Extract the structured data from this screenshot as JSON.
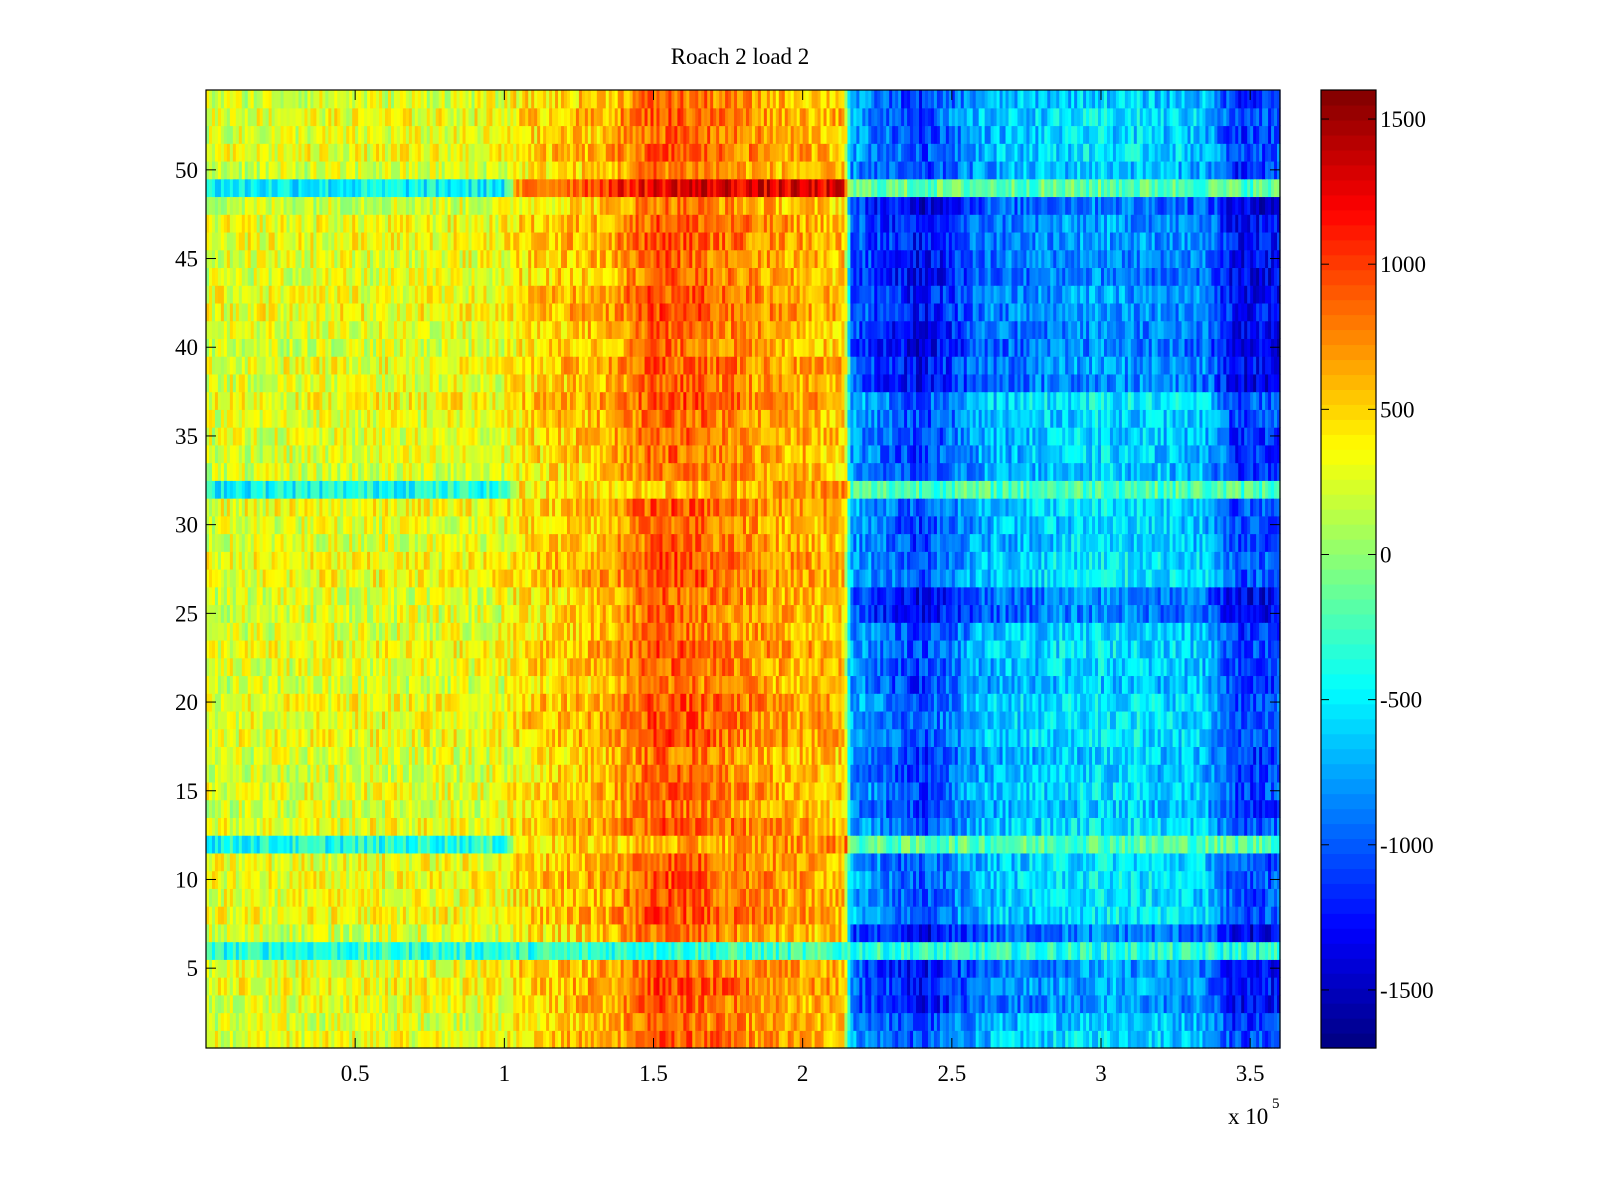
{
  "chart_data": {
    "type": "heatmap",
    "title": "Roach 2 load 2",
    "xlabel": "",
    "ylabel": "",
    "x_range": [
      0,
      360000
    ],
    "y_range": [
      0.5,
      54.5
    ],
    "rows": 54,
    "columns": 360,
    "x_ticks": [
      50000,
      100000,
      150000,
      200000,
      250000,
      300000,
      350000
    ],
    "x_tick_labels": [
      "0.5",
      "1",
      "1.5",
      "2",
      "2.5",
      "3",
      "3.5"
    ],
    "x_exponent": {
      "prefix": "x 10",
      "power": "5"
    },
    "y_ticks": [
      5,
      10,
      15,
      20,
      25,
      30,
      35,
      40,
      45,
      50
    ],
    "y_tick_labels": [
      "5",
      "10",
      "15",
      "20",
      "25",
      "30",
      "35",
      "40",
      "45",
      "50"
    ],
    "colormap": "jet",
    "clim": [
      -1700,
      1600
    ],
    "colorbar_ticks": [
      1500,
      1000,
      500,
      0,
      -500,
      -1000,
      -1500
    ],
    "colorbar_tick_labels": [
      "1500",
      "1000",
      "500",
      "0",
      "-500",
      "-1000",
      "-1500"
    ],
    "profile": {
      "x": [
        0,
        50000,
        100000,
        105000,
        135000,
        150000,
        165000,
        190000,
        214000,
        216000,
        240000,
        260000,
        300000,
        335000,
        345000,
        360000
      ],
      "value": [
        250,
        280,
        300,
        450,
        600,
        900,
        850,
        650,
        550,
        -750,
        -1100,
        -700,
        -550,
        -650,
        -1100,
        -1050
      ]
    },
    "row_patterns": {
      "pattern_a": {
        "rows": [
          12,
          32
        ],
        "x": [
          0,
          100000,
          105000,
          215000,
          216000,
          360000
        ],
        "value": [
          -400,
          -300,
          450,
          800,
          -150,
          -150
        ]
      },
      "pattern_b": {
        "rows": [
          49
        ],
        "x": [
          0,
          100000,
          105000,
          140000,
          160000,
          214000,
          216000,
          360000
        ],
        "value": [
          -500,
          -500,
          700,
          1100,
          1300,
          1200,
          -150,
          -200
        ]
      },
      "pattern_c": {
        "rows": [
          6
        ],
        "x": [
          0,
          210000,
          216000,
          360000
        ],
        "value": [
          -400,
          -300,
          -350,
          -400
        ]
      }
    }
  }
}
